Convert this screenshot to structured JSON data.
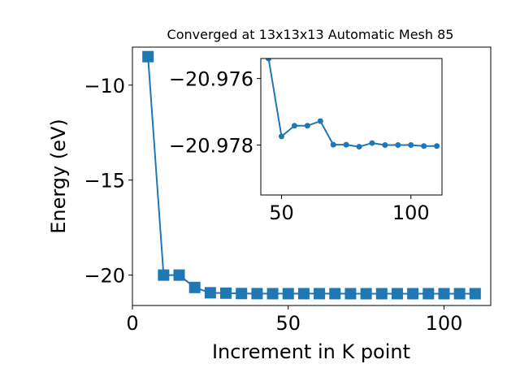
{
  "chart_data": [
    {
      "type": "line",
      "title": "Converged at 13x13x13 Automatic Mesh 85",
      "xlabel": "Increment in K point",
      "ylabel": "Energy (eV)",
      "xlim": [
        0,
        115
      ],
      "ylim": [
        -21.6,
        -8.0
      ],
      "grid": false,
      "marker": "square",
      "color": "#1f77b4",
      "xticks": [
        0,
        50,
        100
      ],
      "xtick_labels": [
        "0",
        "50",
        "100"
      ],
      "yticks": [
        -20,
        -15,
        -10
      ],
      "ytick_labels": [
        "−20",
        "−15",
        "−10"
      ],
      "x": [
        5,
        10,
        15,
        20,
        25,
        30,
        35,
        40,
        45,
        50,
        55,
        60,
        65,
        70,
        75,
        80,
        85,
        90,
        95,
        100,
        105,
        110
      ],
      "series": [
        {
          "values": [
            -8.5,
            -20.0,
            -20.0,
            -20.65,
            -20.93,
            -20.95,
            -20.97,
            -20.975,
            -20.977,
            -20.977,
            -20.977,
            -20.977,
            -20.977,
            -20.978,
            -20.978,
            -20.978,
            -20.978,
            -20.978,
            -20.978,
            -20.978,
            -20.978,
            -20.978
          ]
        }
      ]
    },
    {
      "type": "line",
      "placement": "inset",
      "title": "",
      "xlabel": "",
      "ylabel": "",
      "xlim": [
        42,
        112
      ],
      "ylim": [
        -20.9795,
        -20.9754
      ],
      "grid": false,
      "marker": "circle",
      "color": "#1f77b4",
      "xticks": [
        50,
        100
      ],
      "xtick_labels": [
        "50",
        "100"
      ],
      "yticks": [
        -20.978,
        -20.976
      ],
      "ytick_labels": [
        "−20.978",
        "−20.976"
      ],
      "x": [
        45,
        50,
        55,
        60,
        65,
        70,
        75,
        80,
        85,
        90,
        95,
        100,
        105,
        110
      ],
      "series": [
        {
          "values": [
            -20.9754,
            -20.97774,
            -20.97742,
            -20.97742,
            -20.97728,
            -20.97799,
            -20.97799,
            -20.97805,
            -20.97794,
            -20.978,
            -20.978,
            -20.978,
            -20.97803,
            -20.97803
          ]
        }
      ]
    }
  ]
}
